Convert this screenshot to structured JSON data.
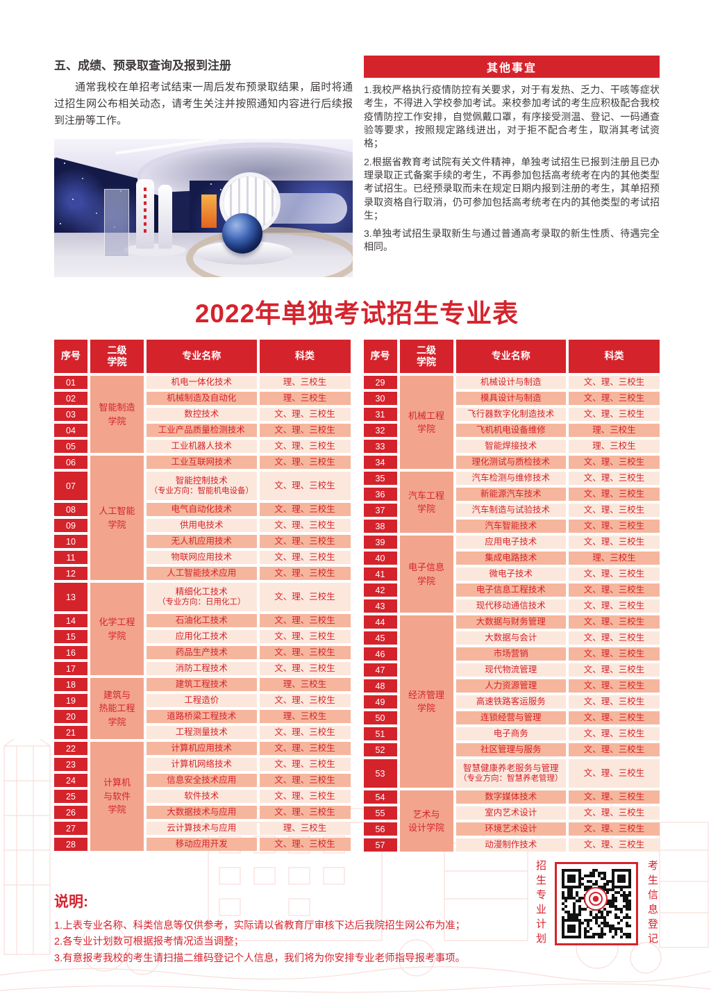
{
  "colors": {
    "accent": "#d5232c",
    "ink": "#3e3a39",
    "row_light": "#fbe7dc",
    "row_dark": "#f5b69d",
    "college_bg": "#f2a58c"
  },
  "intro": {
    "title": "五、成绩、预录取查询及报到注册",
    "body": "通常我校在单招考试结束一周后发布预录取结果，届时将通过招生网公布相关动态，请考生关注并按照通知内容进行后续报到注册等工作。"
  },
  "other": {
    "title": "其他事宜",
    "paragraphs": [
      "1.我校严格执行疫情防控有关要求，对于有发热、乏力、干咳等症状考生，不得进入学校参加考试。来校参加考试的考生应积极配合我校疫情防控工作安排，自觉佩戴口罩，有序接受测温、登记、一码通查验等要求，按照规定路线进出，对于拒不配合考生，取消其考试资格；",
      "2.根据省教育考试院有关文件精神，单独考试招生已报到注册且已办理录取正式备案手续的考生，不再参加包括高考统考在内的其他类型考试招生。已经预录取而未在规定日期内报到注册的考生，其单招预录取资格自行取消，仍可参加包括高考统考在内的其他类型的考试招生；",
      "3.单独考试招生录取新生与通过普通高考录取的新生性质、待遇完全相同。"
    ]
  },
  "table_title": "2022年单独考试招生专业表",
  "table": {
    "headers": [
      "序号",
      "二级\n学院",
      "专业名称",
      "科类"
    ],
    "halves": [
      {
        "groups": [
          {
            "college": "智能制造\n学院",
            "rows": [
              {
                "no": "01",
                "major": "机电一体化技术",
                "category": "理、三校生"
              },
              {
                "no": "02",
                "major": "机械制造及自动化",
                "category": "理、三校生"
              },
              {
                "no": "03",
                "major": "数控技术",
                "category": "文、理、三校生"
              },
              {
                "no": "04",
                "major": "工业产品质量检测技术",
                "category": "文、理、三校生"
              },
              {
                "no": "05",
                "major": "工业机器人技术",
                "category": "文、理、三校生"
              }
            ]
          },
          {
            "college": "人工智能\n学院",
            "rows": [
              {
                "no": "06",
                "major": "工业互联网技术",
                "category": "文、理、三校生"
              },
              {
                "no": "07",
                "major": "智能控制技术",
                "sub": "（专业方向：智能机电设备）",
                "category": "文、理、三校生"
              },
              {
                "no": "08",
                "major": "电气自动化技术",
                "category": "文、理、三校生"
              },
              {
                "no": "09",
                "major": "供用电技术",
                "category": "文、理、三校生"
              },
              {
                "no": "10",
                "major": "无人机应用技术",
                "category": "文、理、三校生"
              },
              {
                "no": "11",
                "major": "物联网应用技术",
                "category": "文、理、三校生"
              },
              {
                "no": "12",
                "major": "人工智能技术应用",
                "category": "文、理、三校生"
              }
            ]
          },
          {
            "college": "化学工程\n学院",
            "rows": [
              {
                "no": "13",
                "major": "精细化工技术",
                "sub": "（专业方向：日用化工）",
                "category": "文、理、三校生"
              },
              {
                "no": "14",
                "major": "石油化工技术",
                "category": "文、理、三校生"
              },
              {
                "no": "15",
                "major": "应用化工技术",
                "category": "文、理、三校生"
              },
              {
                "no": "16",
                "major": "药品生产技术",
                "category": "文、理、三校生"
              },
              {
                "no": "17",
                "major": "消防工程技术",
                "category": "文、理、三校生"
              }
            ]
          },
          {
            "college": "建筑与\n热能工程\n学院",
            "rows": [
              {
                "no": "18",
                "major": "建筑工程技术",
                "category": "理、三校生"
              },
              {
                "no": "19",
                "major": "工程造价",
                "category": "文、理、三校生"
              },
              {
                "no": "20",
                "major": "道路桥梁工程技术",
                "category": "理、三校生"
              },
              {
                "no": "21",
                "major": "工程测量技术",
                "category": "文、理、三校生"
              }
            ]
          },
          {
            "college": "计算机\n与软件\n学院",
            "rows": [
              {
                "no": "22",
                "major": "计算机应用技术",
                "category": "文、理、三校生"
              },
              {
                "no": "23",
                "major": "计算机网络技术",
                "category": "文、理、三校生"
              },
              {
                "no": "24",
                "major": "信息安全技术应用",
                "category": "文、理、三校生"
              },
              {
                "no": "25",
                "major": "软件技术",
                "category": "文、理、三校生"
              },
              {
                "no": "26",
                "major": "大数据技术与应用",
                "category": "文、理、三校生"
              },
              {
                "no": "27",
                "major": "云计算技术与应用",
                "category": "理、三校生"
              },
              {
                "no": "28",
                "major": "移动应用开发",
                "category": "文、理、三校生"
              }
            ]
          }
        ]
      },
      {
        "groups": [
          {
            "college": "机械工程\n学院",
            "rows": [
              {
                "no": "29",
                "major": "机械设计与制造",
                "category": "文、理、三校生"
              },
              {
                "no": "30",
                "major": "模具设计与制造",
                "category": "文、理、三校生"
              },
              {
                "no": "31",
                "major": "飞行器数字化制造技术",
                "category": "文、理、三校生"
              },
              {
                "no": "32",
                "major": "飞机机电设备维修",
                "category": "理、三校生"
              },
              {
                "no": "33",
                "major": "智能焊接技术",
                "category": "理、三校生"
              },
              {
                "no": "34",
                "major": "理化测试与质检技术",
                "category": "文、理、三校生"
              }
            ]
          },
          {
            "college": "汽车工程\n学院",
            "rows": [
              {
                "no": "35",
                "major": "汽车检测与维修技术",
                "category": "文、理、三校生"
              },
              {
                "no": "36",
                "major": "新能源汽车技术",
                "category": "文、理、三校生"
              },
              {
                "no": "37",
                "major": "汽车制造与试验技术",
                "category": "文、理、三校生"
              },
              {
                "no": "38",
                "major": "汽车智能技术",
                "category": "文、理、三校生"
              }
            ]
          },
          {
            "college": "电子信息\n学院",
            "rows": [
              {
                "no": "39",
                "major": "应用电子技术",
                "category": "文、理、三校生"
              },
              {
                "no": "40",
                "major": "集成电路技术",
                "category": "理、三校生"
              },
              {
                "no": "41",
                "major": "微电子技术",
                "category": "文、理、三校生"
              },
              {
                "no": "42",
                "major": "电子信息工程技术",
                "category": "文、理、三校生"
              },
              {
                "no": "43",
                "major": "现代移动通信技术",
                "category": "文、理、三校生"
              }
            ]
          },
          {
            "college": "经济管理\n学院",
            "rows": [
              {
                "no": "44",
                "major": "大数据与财务管理",
                "category": "文、理、三校生"
              },
              {
                "no": "45",
                "major": "大数据与会计",
                "category": "文、理、三校生"
              },
              {
                "no": "46",
                "major": "市场营销",
                "category": "文、理、三校生"
              },
              {
                "no": "47",
                "major": "现代物流管理",
                "category": "文、理、三校生"
              },
              {
                "no": "48",
                "major": "人力资源管理",
                "category": "文、理、三校生"
              },
              {
                "no": "49",
                "major": "高速铁路客运服务",
                "category": "文、理、三校生"
              },
              {
                "no": "50",
                "major": "连锁经营与管理",
                "category": "文、理、三校生"
              },
              {
                "no": "51",
                "major": "电子商务",
                "category": "文、理、三校生"
              },
              {
                "no": "52",
                "major": "社区管理与服务",
                "category": "文、理、三校生"
              },
              {
                "no": "53",
                "major": "智慧健康养老服务与管理",
                "sub": "（专业方向：智慧养老管理）",
                "category": "文、理、三校生"
              }
            ]
          },
          {
            "college": "艺术与\n设计学院",
            "rows": [
              {
                "no": "54",
                "major": "数字媒体技术",
                "category": "文、理、三校生"
              },
              {
                "no": "55",
                "major": "室内艺术设计",
                "category": "文、理、三校生"
              },
              {
                "no": "56",
                "major": "环境艺术设计",
                "category": "文、理、三校生"
              },
              {
                "no": "57",
                "major": "动漫制作技术",
                "category": "文、理、三校生"
              }
            ]
          }
        ]
      }
    ]
  },
  "notes": {
    "title": "说明:",
    "items": [
      "1.上表专业名称、科类信息等仅供参考，实际请以省教育厅审核下达后我院招生网公布为准；",
      "2.各专业计划数可根据报考情况适当调整；",
      "3.有意报考我校的考生请扫描二维码登记个人信息，我们将为你安排专业老师指导报考事项。"
    ]
  },
  "qr": {
    "left_label": "招生专业计划",
    "right_label": "考生信息登记"
  }
}
